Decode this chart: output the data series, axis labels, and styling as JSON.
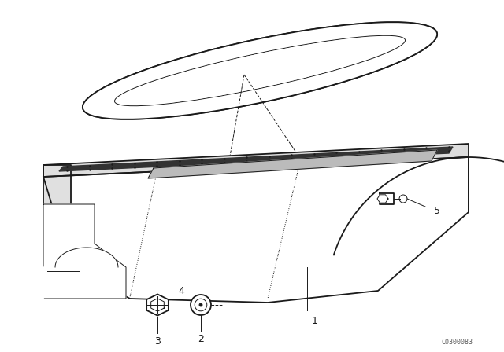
{
  "background_color": "#ffffff",
  "fig_width": 6.4,
  "fig_height": 4.48,
  "dpi": 100,
  "watermark_text": "C0300083",
  "line_color": "#1a1a1a",
  "lw_main": 1.3,
  "lw_thin": 0.7,
  "lw_thick": 2.0,
  "label_fontsize": 9,
  "watermark_fontsize": 6
}
